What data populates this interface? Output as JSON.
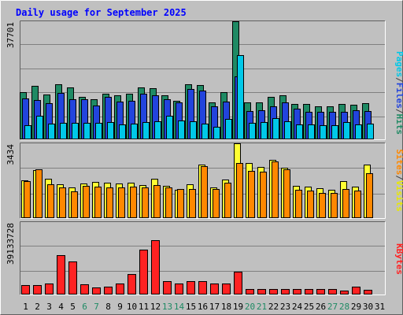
{
  "chart_data": {
    "type": "bar",
    "title": "Daily usage for September 2025",
    "days": [
      "1",
      "2",
      "3",
      "4",
      "5",
      "6",
      "7",
      "8",
      "9",
      "10",
      "11",
      "12",
      "13",
      "14",
      "15",
      "16",
      "17",
      "18",
      "19",
      "20",
      "21",
      "22",
      "23",
      "24",
      "25",
      "26",
      "27",
      "28",
      "29",
      "30",
      "31"
    ],
    "weekend_days": [
      "6",
      "7",
      "13",
      "14",
      "20",
      "21",
      "27",
      "28"
    ],
    "panels": [
      {
        "id": "hits",
        "ymax_label": "37701",
        "ymax": 37701,
        "labels": [
          {
            "text": "Pages",
            "color": "#00c8e8"
          },
          {
            "text": "/",
            "color": "#404040"
          },
          {
            "text": "Files",
            "color": "#2244dd"
          },
          {
            "text": "/",
            "color": "#404040"
          },
          {
            "text": "Hits",
            "color": "#1f8a64"
          }
        ],
        "series": [
          {
            "name": "Hits",
            "color": "#1f8a64",
            "values": [
              15100,
              17200,
              14300,
              17600,
              16500,
              13600,
              12800,
              14600,
              14000,
              14600,
              16700,
              16400,
              14200,
              12300,
              17700,
              17400,
              11900,
              15200,
              37701,
              11900,
              11900,
              13600,
              14200,
              11200,
              11200,
              10500,
              10600,
              11200,
              11000,
              11500,
              null
            ]
          },
          {
            "name": "Files",
            "color": "#2244dd",
            "values": [
              13100,
              12500,
              11500,
              14900,
              12700,
              12800,
              10800,
              13600,
              12000,
              12300,
              14700,
              14100,
              12700,
              11800,
              16200,
              15500,
              10500,
              12000,
              20000,
              9100,
              9400,
              10500,
              11800,
              9800,
              8800,
              8900,
              8900,
              8800,
              9300,
              9100,
              null
            ]
          },
          {
            "name": "Pages",
            "color": "#00c8e8",
            "values": [
              4500,
              7500,
              5000,
              5200,
              5200,
              5300,
              5400,
              5500,
              4800,
              5000,
              5600,
              5700,
              7500,
              6000,
              5800,
              5000,
              4100,
              6500,
              26800,
              5300,
              5500,
              6800,
              5700,
              4800,
              4700,
              4500,
              4500,
              5600,
              4800,
              5000,
              null
            ]
          }
        ]
      },
      {
        "id": "visits",
        "ymax_label": "3434",
        "ymax": 3434,
        "labels": [
          {
            "text": "Sites",
            "color": "#ff8800"
          },
          {
            "text": "/",
            "color": "#404040"
          },
          {
            "text": "Visits",
            "color": "#e8e800"
          }
        ],
        "series": [
          {
            "name": "Visits",
            "color": "#ffff33",
            "values": [
              1720,
              2190,
              1820,
              1560,
              1410,
              1600,
              1650,
              1610,
              1580,
              1630,
              1510,
              1800,
              1500,
              1300,
              1560,
              2460,
              1420,
              1760,
              3434,
              2520,
              2360,
              2690,
              2330,
              1470,
              1430,
              1390,
              1310,
              1700,
              1440,
              2440,
              null
            ]
          },
          {
            "name": "Sites",
            "color": "#ff8800",
            "values": [
              1700,
              2230,
              1560,
              1420,
              1240,
              1480,
              1440,
              1410,
              1400,
              1440,
              1400,
              1520,
              1410,
              1320,
              1330,
              2400,
              1340,
              1640,
              2540,
              2180,
              2130,
              2600,
              2230,
              1290,
              1260,
              1150,
              1140,
              1320,
              1280,
              2050,
              null
            ]
          }
        ]
      },
      {
        "id": "kbytes",
        "ymax_label": "39133728",
        "ymax": 39133728,
        "labels": [
          {
            "text": "KBytes",
            "color": "#ff2222"
          }
        ],
        "series": [
          {
            "name": "KBytes",
            "color": "#ff2222",
            "values": [
              5100000,
              4900000,
              5800000,
              21300000,
              17700000,
              5700000,
              3700000,
              4300000,
              5800000,
              11100000,
              24300000,
              29400000,
              7200000,
              5800000,
              7100000,
              7100000,
              5900000,
              5800000,
              12300000,
              2800000,
              2800000,
              2800000,
              2800000,
              2800000,
              2800000,
              2800000,
              2800000,
              2300000,
              4100000,
              2500000,
              null
            ]
          }
        ]
      }
    ]
  },
  "colors": {
    "background": "#c0c0c0",
    "plot_background": "#c0c0c0",
    "title": "#0000ff",
    "grid": "#808080",
    "weekday_label": "#000000",
    "weekend_label": "#1f8a64"
  }
}
